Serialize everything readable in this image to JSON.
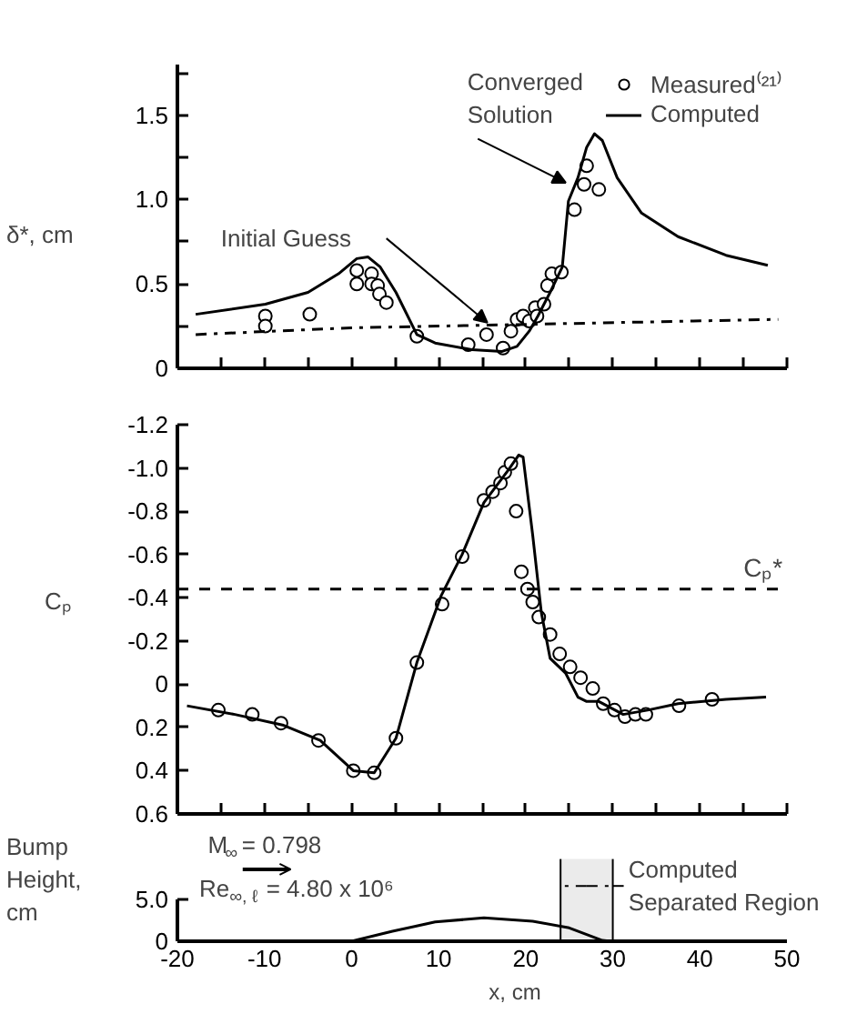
{
  "chart_data": [
    {
      "type": "line",
      "ylabel": "δ*, cm",
      "xlim": [
        -20,
        50
      ],
      "xticks": [
        {
          "value": -20,
          "label": null
        },
        {
          "value": -15,
          "label": null
        },
        {
          "value": -10,
          "label": null
        },
        {
          "value": -5,
          "label": null
        },
        {
          "value": 0,
          "label": null
        },
        {
          "value": 5,
          "label": null
        },
        {
          "value": 10,
          "label": null
        },
        {
          "value": 15,
          "label": null
        },
        {
          "value": 20,
          "label": null
        },
        {
          "value": 25,
          "label": null
        },
        {
          "value": 30,
          "label": null
        },
        {
          "value": 35,
          "label": null
        },
        {
          "value": 40,
          "label": null
        },
        {
          "value": 45,
          "label": null
        },
        {
          "value": 50,
          "label": null
        }
      ],
      "ylim": [
        0,
        1.8
      ],
      "yticks": [
        0,
        {
          "value": 0.25,
          "label": null
        },
        0.5,
        {
          "value": 0.75,
          "label": null
        },
        {
          "value": 1,
          "label": "1.0"
        },
        {
          "value": 1.25,
          "label": null
        },
        1.5,
        {
          "value": 1.75,
          "label": null
        }
      ],
      "tick_labels": "y",
      "legend": "top right",
      "series": [
        {
          "name": "Measured⁽²¹⁾",
          "type": "scatter",
          "marker": "circle",
          "color": "#000000",
          "x": [
            -9.9,
            -9.9,
            -4.8,
            0.6,
            0.6,
            2.3,
            2.3,
            3.0,
            3.2,
            4.0,
            7.5,
            13.4,
            15.5,
            17.4,
            18.3,
            19.0,
            19.7,
            20.4,
            21.1,
            21.3,
            22.1,
            22.5,
            23.0,
            24.1,
            25.6,
            26.7,
            27.0,
            28.4
          ],
          "values": [
            0.31,
            0.25,
            0.32,
            0.58,
            0.5,
            0.56,
            0.5,
            0.49,
            0.44,
            0.39,
            0.19,
            0.14,
            0.2,
            0.12,
            0.22,
            0.29,
            0.31,
            0.28,
            0.36,
            0.31,
            0.38,
            0.49,
            0.56,
            0.57,
            0.94,
            1.09,
            1.2,
            1.06
          ]
        },
        {
          "name": "Computed",
          "color": "#000000",
          "x": [
            -17.9,
            -9.9,
            -5.0,
            -1.5,
            0.6,
            1.9,
            3.3,
            5.1,
            7.5,
            9.6,
            13.8,
            17.3,
            19.0,
            20.4,
            21.4,
            22.8,
            24.2,
            24.9,
            26.0,
            27.0,
            27.9,
            28.8,
            30.5,
            33.3,
            37.5,
            43.0,
            47.8
          ],
          "values": [
            0.32,
            0.38,
            0.45,
            0.56,
            0.65,
            0.66,
            0.6,
            0.45,
            0.2,
            0.15,
            0.11,
            0.1,
            0.13,
            0.22,
            0.31,
            0.45,
            0.6,
            0.99,
            1.13,
            1.31,
            1.39,
            1.35,
            1.13,
            0.92,
            0.78,
            0.67,
            0.61
          ]
        },
        {
          "line_style": "dashdot",
          "color": "#000000",
          "x": [
            -17.9,
            0,
            49.0
          ],
          "values": [
            0.2,
            0.24,
            0.29
          ]
        }
      ],
      "annotations": [
        {
          "text": "Converged Solution",
          "x": 24.6,
          "y": 1.1
        },
        "Initial Guess"
      ]
    },
    {
      "type": "line",
      "ylabel": "Cₚ",
      "xlim": [
        -20,
        50
      ],
      "xticks": [
        {
          "value": -20,
          "label": null
        },
        {
          "value": -15,
          "label": null
        },
        {
          "value": -10,
          "label": null
        },
        {
          "value": -5,
          "label": null
        },
        {
          "value": 0,
          "label": null
        },
        {
          "value": 5,
          "label": null
        },
        {
          "value": 10,
          "label": null
        },
        {
          "value": 15,
          "label": null
        },
        {
          "value": 20,
          "label": null
        },
        {
          "value": 25,
          "label": null
        },
        {
          "value": 30,
          "label": null
        },
        {
          "value": 35,
          "label": null
        },
        {
          "value": 40,
          "label": null
        },
        {
          "value": 45,
          "label": null
        },
        {
          "value": 50,
          "label": null
        }
      ],
      "ylim": [
        0.6,
        -1.2
      ],
      "yticks": [
        -1.2,
        {
          "value": -1,
          "label": "-1.0"
        },
        -0.8,
        -0.6,
        -0.4,
        -0.2,
        0,
        0.2,
        0.4,
        0.6
      ],
      "tick_labels": "y",
      "series": [
        {
          "type": "scatter",
          "marker": "circle",
          "color": "#000000",
          "x": [
            -15.3,
            -11.4,
            -8.1,
            -3.8,
            0.2,
            2.6,
            5.1,
            7.5,
            10.4,
            12.7,
            15.2,
            16.2,
            17.1,
            17.6,
            18.3,
            18.9,
            19.5,
            20.2,
            20.8,
            21.5,
            22.8,
            23.9,
            25.1,
            26.3,
            27.7,
            28.9,
            30.2,
            31.4,
            32.6,
            33.8,
            37.6,
            41.4
          ],
          "values": [
            0.12,
            0.14,
            0.18,
            0.26,
            0.4,
            0.41,
            0.25,
            -0.1,
            -0.37,
            -0.59,
            -0.85,
            -0.89,
            -0.93,
            -0.98,
            -1.02,
            -0.8,
            -0.52,
            -0.44,
            -0.38,
            -0.31,
            -0.23,
            -0.14,
            -0.08,
            -0.03,
            0.02,
            0.09,
            0.12,
            0.15,
            0.14,
            0.14,
            0.1,
            0.07
          ]
        },
        {
          "color": "#000000",
          "x": [
            -18.9,
            -13.4,
            -7.8,
            -3.6,
            0.2,
            2.6,
            5.1,
            7.5,
            10.3,
            12.7,
            15.2,
            18.0,
            19.2,
            19.7,
            20.8,
            21.8,
            22.8,
            24.6,
            26.0,
            27.0,
            28.4,
            31.2,
            34.0,
            37.5,
            43.0,
            47.6
          ],
          "values": [
            0.1,
            0.14,
            0.19,
            0.26,
            0.4,
            0.41,
            0.25,
            -0.1,
            -0.41,
            -0.6,
            -0.84,
            -0.99,
            -1.06,
            -1.05,
            -0.69,
            -0.33,
            -0.12,
            -0.05,
            0.06,
            0.08,
            0.08,
            0.14,
            0.12,
            0.09,
            0.07,
            0.06
          ]
        }
      ],
      "ref_lines": [
        {
          "axis": "y",
          "value": -0.44,
          "label": "Cₚ*",
          "line_style": "dashed"
        }
      ]
    },
    {
      "type": "line",
      "ylabel": "Bump Height, cm",
      "xlabel": "x, cm",
      "xlim": [
        -20,
        50
      ],
      "xticks": [
        -20,
        -10,
        0,
        10,
        20,
        30,
        40,
        50
      ],
      "ylim": [
        0,
        5
      ],
      "yticks": [
        0,
        {
          "value": 5,
          "label": "5.0"
        }
      ],
      "series": [
        {
          "color": "#000000",
          "x": [
            -20,
            0,
            4.7,
            9.6,
            15.2,
            20.8,
            25,
            28.8,
            29.8,
            50
          ],
          "values": [
            0,
            0,
            1.2,
            2.3,
            2.8,
            2.4,
            1.6,
            0.1,
            0,
            0
          ]
        }
      ],
      "bands": [
        {
          "axis": "x",
          "from": 24,
          "to": 30,
          "label": "Computed Separated Region"
        }
      ],
      "annotations": [
        "M$_{∞}$ = 0.798",
        "Re$_{∞, ℓ}$ = 4.80 x 10⁶"
      ]
    }
  ]
}
